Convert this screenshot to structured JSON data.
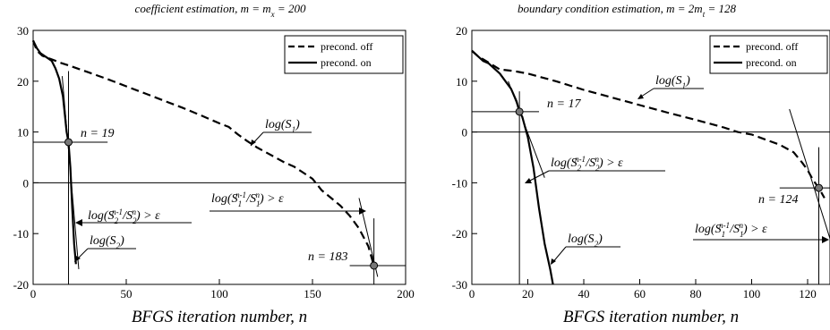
{
  "chart_data": [
    {
      "type": "line",
      "title": "coefficient estimation, m = m_x = 200",
      "title_parts": [
        "coefficient estimation, ",
        "m",
        " = ",
        "m",
        "x",
        " = 200"
      ],
      "xlabel": "BFGS iteration number, n",
      "ylabel": "",
      "xlim": [
        0,
        200
      ],
      "ylim": [
        -20,
        30
      ],
      "xticks": [
        0,
        50,
        100,
        150,
        200
      ],
      "yticks": [
        -20,
        -10,
        0,
        10,
        20,
        30
      ],
      "grid": false,
      "legend": "top-right",
      "series": [
        {
          "name": "precond. off",
          "style": "dashed",
          "x": [
            0,
            2,
            5,
            10,
            15,
            20,
            30,
            40,
            50,
            60,
            70,
            80,
            90,
            100,
            105,
            110,
            115,
            120,
            125,
            130,
            135,
            140,
            145,
            150,
            155,
            160,
            165,
            170,
            175,
            180,
            183
          ],
          "y": [
            28,
            26,
            25,
            24.3,
            23.6,
            23,
            21.7,
            20.4,
            19,
            17.6,
            16.2,
            14.8,
            13.3,
            11.7,
            11,
            9.5,
            8.2,
            7,
            6,
            5,
            4,
            3.2,
            2,
            0.8,
            -1.5,
            -3,
            -4.5,
            -6.5,
            -9,
            -12.5,
            -16.3
          ]
        },
        {
          "name": "precond. on",
          "style": "solid",
          "x": [
            0,
            2,
            4,
            6,
            8,
            10,
            12,
            14,
            16,
            17,
            18,
            19,
            20,
            21,
            22,
            23
          ],
          "y": [
            28,
            26.5,
            25.5,
            25,
            24.5,
            24,
            22.5,
            20.5,
            17,
            13.5,
            10,
            8,
            3,
            -5,
            -12,
            -16
          ]
        }
      ],
      "markers": [
        {
          "x": 19,
          "y": 8,
          "label": "n = 19"
        },
        {
          "x": 183,
          "y": -16.3,
          "label": "n = 183"
        }
      ],
      "annotations": [
        {
          "text": "log(S1)",
          "parts": [
            "log(S",
            "1",
            ")"
          ]
        },
        {
          "text": "log(S1^(n-1)/S1^n) > ε",
          "parts": [
            "log(S",
            "1",
            "n-1",
            "/S",
            "1",
            "n",
            ") > ε"
          ]
        },
        {
          "text": "log(S2^(n-1)/S2^n) > ε",
          "parts": [
            "log(S",
            "2",
            "n-1",
            "/S",
            "2",
            "n",
            ") > ε"
          ]
        },
        {
          "text": "log(S2)",
          "parts": [
            "log(S",
            "2",
            ")"
          ]
        }
      ]
    },
    {
      "type": "line",
      "title": "boundary condition estimation, m = 2m_t = 128",
      "title_parts": [
        "boundary condition estimation, ",
        "m",
        " = 2",
        "m",
        "t",
        " = 128"
      ],
      "xlabel": "BFGS iteration number, n",
      "ylabel": "",
      "xlim": [
        0,
        128
      ],
      "ylim": [
        -30,
        20
      ],
      "xticks": [
        0,
        20,
        40,
        60,
        80,
        100,
        120
      ],
      "yticks": [
        -30,
        -20,
        -10,
        0,
        10,
        20
      ],
      "grid": false,
      "legend": "top-right",
      "series": [
        {
          "name": "precond. off",
          "style": "dashed",
          "x": [
            0,
            2,
            5,
            8,
            10,
            15,
            20,
            30,
            40,
            50,
            60,
            70,
            80,
            90,
            95,
            100,
            105,
            110,
            115,
            118,
            120,
            122,
            124,
            126
          ],
          "y": [
            16,
            15,
            14,
            13,
            12.3,
            12,
            11.5,
            10,
            8.3,
            6.8,
            5.3,
            3.8,
            2.4,
            0.9,
            0,
            -0.5,
            -1.5,
            -2.5,
            -4,
            -6,
            -7.5,
            -9.5,
            -11,
            -13
          ]
        },
        {
          "name": "precond. on",
          "style": "solid",
          "x": [
            0,
            2,
            4,
            6,
            8,
            10,
            12,
            14,
            16,
            17,
            18,
            20,
            22,
            24,
            26,
            28,
            29
          ],
          "y": [
            16,
            15,
            14,
            13.5,
            12.5,
            11.5,
            10,
            8.5,
            6,
            4,
            3,
            -1,
            -7,
            -15,
            -22,
            -27,
            -30
          ]
        }
      ],
      "markers": [
        {
          "x": 17,
          "y": 4,
          "label": "n = 17"
        },
        {
          "x": 124,
          "y": -11,
          "label": "n = 124"
        }
      ],
      "annotations": [
        {
          "text": "log(S1)",
          "parts": [
            "log(S",
            "1",
            ")"
          ]
        },
        {
          "text": "log(S2^(n-1)/S2^n) > ε",
          "parts": [
            "log(S",
            "2",
            "n-1",
            "/S",
            "2",
            "n",
            ") > ε"
          ]
        },
        {
          "text": "log(S2)",
          "parts": [
            "log(S",
            "2",
            ")"
          ]
        },
        {
          "text": "log(S1^(n-1)/S1^n) > ε",
          "parts": [
            "log(S",
            "1",
            "n-1",
            "/S",
            "1",
            "n",
            ") > ε"
          ]
        }
      ]
    }
  ]
}
